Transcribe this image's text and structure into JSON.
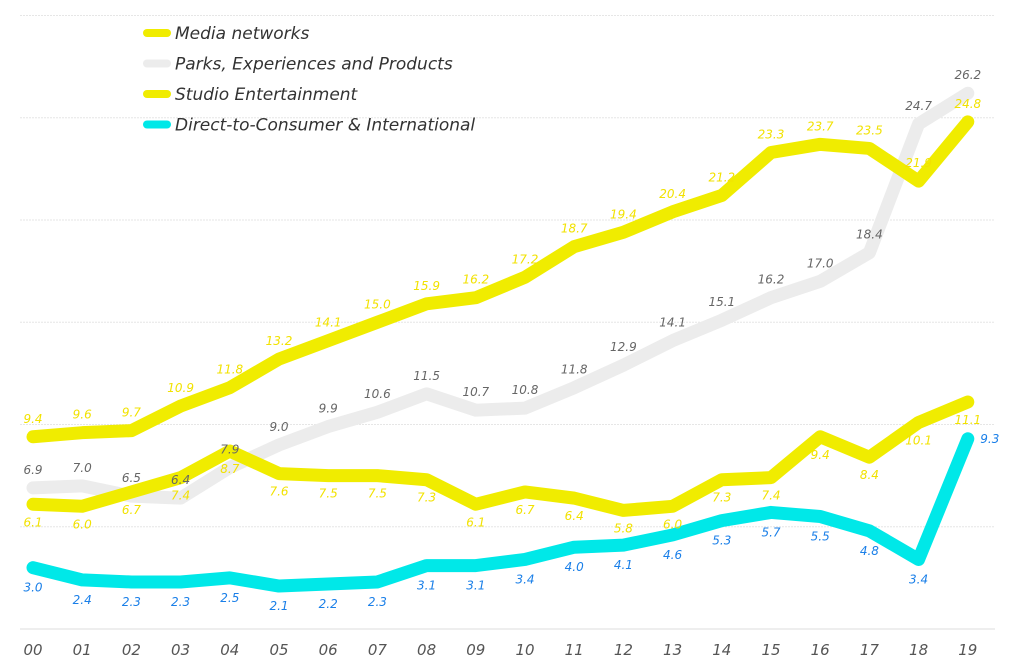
{
  "chart_data": {
    "type": "line",
    "title": "",
    "xlabel": "",
    "ylabel": "",
    "ylim": [
      0,
      30
    ],
    "grid": true,
    "legend_position": "top-left",
    "x": [
      "00",
      "01",
      "02",
      "03",
      "04",
      "05",
      "06",
      "07",
      "08",
      "09",
      "10",
      "11",
      "12",
      "13",
      "14",
      "15",
      "16",
      "17",
      "18",
      "19"
    ],
    "series": [
      {
        "name": "Media networks",
        "color": "#f0ec00",
        "label_color": "#f2e200",
        "values": [
          9.4,
          9.6,
          9.7,
          10.9,
          11.8,
          13.2,
          14.1,
          15.0,
          15.9,
          16.2,
          17.2,
          18.7,
          19.4,
          20.4,
          21.2,
          23.3,
          23.7,
          23.5,
          21.9,
          24.8
        ]
      },
      {
        "name": "Parks, Experiences and Products",
        "color": "#ececec",
        "label_color": "#666666",
        "values": [
          6.9,
          7.0,
          6.5,
          6.4,
          7.9,
          9.0,
          9.9,
          10.6,
          11.5,
          10.7,
          10.8,
          11.8,
          12.9,
          14.1,
          15.1,
          16.2,
          17.0,
          18.4,
          24.7,
          26.2
        ]
      },
      {
        "name": "Studio Entertainment",
        "color": "#f0ec00",
        "label_color": "#f2e200",
        "values": [
          6.1,
          6.0,
          6.7,
          7.4,
          8.7,
          7.6,
          7.5,
          7.5,
          7.3,
          6.1,
          6.7,
          6.4,
          5.8,
          6.0,
          7.3,
          7.4,
          9.4,
          8.4,
          10.1,
          11.1
        ]
      },
      {
        "name": "Direct-to-Consumer & International",
        "color": "#00e8e8",
        "label_color": "#1a7fe8",
        "values": [
          3.0,
          2.4,
          2.3,
          2.3,
          2.5,
          2.1,
          2.2,
          2.3,
          3.1,
          3.1,
          3.4,
          4.0,
          4.1,
          4.6,
          5.3,
          5.7,
          5.5,
          4.8,
          3.4,
          9.3
        ]
      }
    ]
  }
}
